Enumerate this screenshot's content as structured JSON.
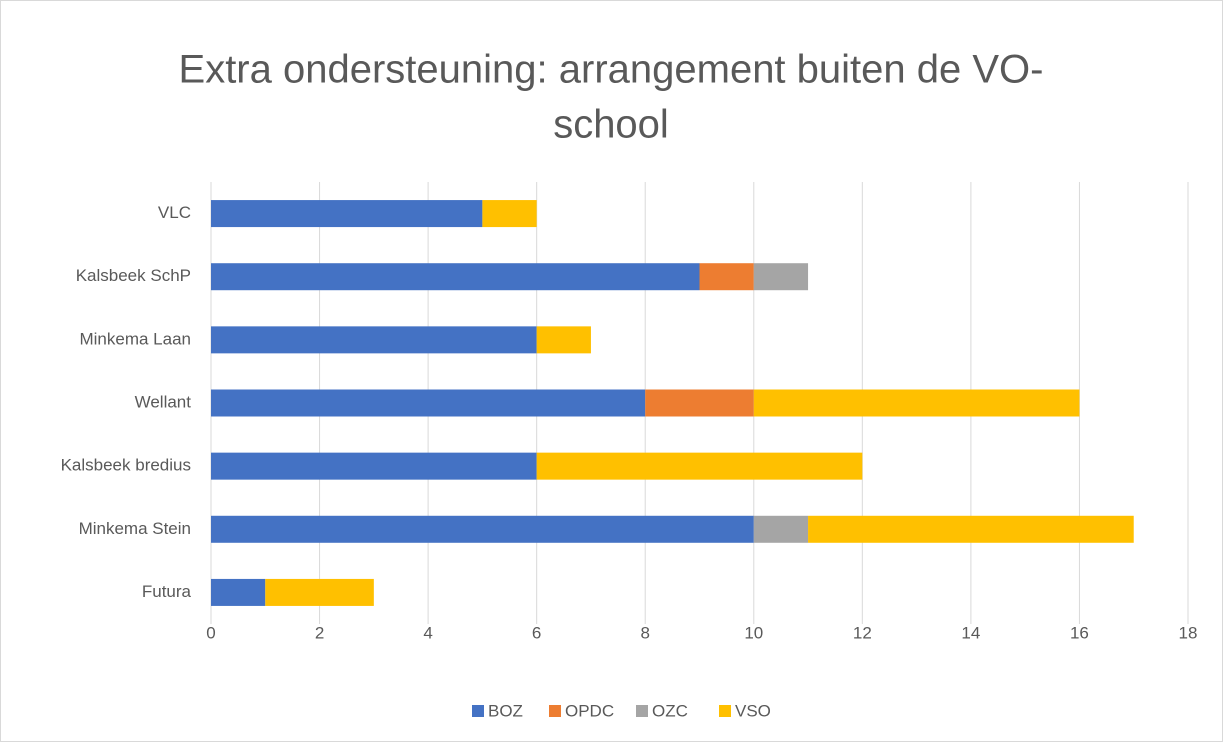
{
  "chart_data": {
    "type": "stacked_barh",
    "title": [
      "Extra ondersteuning: arrangement buiten de VO-",
      "school"
    ],
    "categories": [
      "VLC",
      "Kalsbeek SchP",
      "Minkema Laan",
      "Wellant",
      "Kalsbeek bredius",
      "Minkema Stein",
      "Futura"
    ],
    "series": [
      {
        "name": "BOZ",
        "color": "#4472c4",
        "values": [
          5,
          9,
          6,
          8,
          6,
          10,
          1
        ]
      },
      {
        "name": "OPDC",
        "color": "#ed7d31",
        "values": [
          0,
          1,
          0,
          2,
          0,
          0,
          0
        ]
      },
      {
        "name": "OZC",
        "color": "#a5a5a5",
        "values": [
          0,
          1,
          0,
          0,
          0,
          1,
          0
        ]
      },
      {
        "name": "VSO",
        "color": "#ffc000",
        "values": [
          1,
          0,
          1,
          6,
          6,
          6,
          2
        ]
      }
    ],
    "xlim": [
      0,
      18
    ],
    "xticks": [
      0,
      2,
      4,
      6,
      8,
      10,
      12,
      14,
      16,
      18
    ],
    "grid": true,
    "legend": "bottom"
  }
}
